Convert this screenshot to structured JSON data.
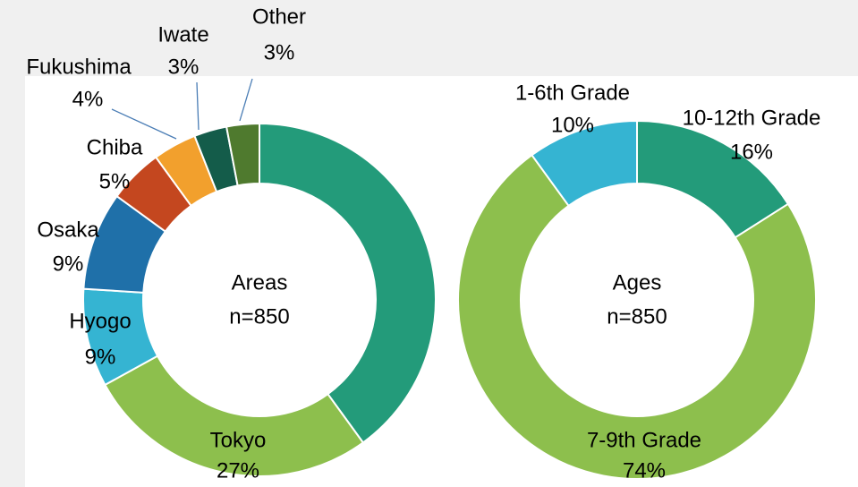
{
  "chart_data": [
    {
      "type": "donut",
      "title": "Areas",
      "subtitle": "n=850",
      "categories": [
        null,
        "Tokyo",
        "Hyogo",
        "Osaka",
        "Chiba",
        "Fukushima",
        "Iwate",
        "Other"
      ],
      "values": [
        40,
        27,
        9,
        9,
        5,
        4,
        3,
        3
      ],
      "value_labels": [
        null,
        "27%",
        "9%",
        "9%",
        "5%",
        "4%",
        "3%",
        "3%"
      ],
      "colors": [
        "#239b7a",
        "#8dbf4d",
        "#35b4d2",
        "#1f70a9",
        "#c4471f",
        "#f2a02d",
        "#145c4a",
        "#4f7a2e"
      ]
    },
    {
      "type": "donut",
      "title": "Ages",
      "subtitle": "n=850",
      "categories": [
        "10-12th Grade",
        "7-9th Grade",
        "1-6th Grade"
      ],
      "values": [
        16,
        74,
        10
      ],
      "value_labels": [
        "16%",
        "74%",
        "10%"
      ],
      "colors": [
        "#239b7a",
        "#8dbf4d",
        "#35b4d2"
      ]
    }
  ]
}
